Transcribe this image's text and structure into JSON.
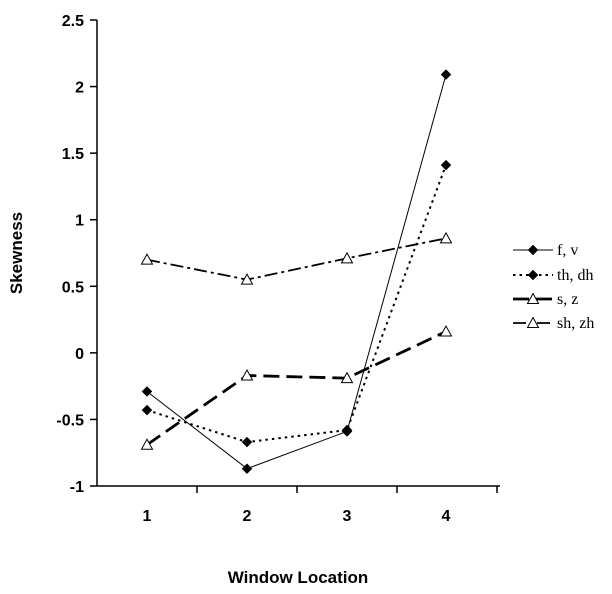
{
  "chart_data": {
    "type": "line",
    "xlabel": "Window Location",
    "ylabel": "Skewness",
    "categories": [
      "1",
      "2",
      "3",
      "4"
    ],
    "ylim": [
      -1,
      2.5
    ],
    "yticks": [
      "-1",
      "-0.5",
      "0",
      "0.5",
      "1",
      "1.5",
      "2",
      "2.5"
    ],
    "grid": false,
    "legend_position": "right",
    "series": [
      {
        "name": "f, v",
        "values": [
          -0.29,
          -0.87,
          -0.59,
          2.09
        ],
        "marker": "diamond-filled",
        "line": "solid-thin",
        "color": "#000000"
      },
      {
        "name": "th, dh",
        "values": [
          -0.43,
          -0.67,
          -0.58,
          1.41
        ],
        "marker": "diamond-filled",
        "line": "dotted",
        "color": "#000000"
      },
      {
        "name": "s, z",
        "values": [
          -0.69,
          -0.17,
          -0.19,
          0.16
        ],
        "marker": "triangle-open",
        "line": "long-dash-thick",
        "color": "#000000"
      },
      {
        "name": "sh, zh",
        "values": [
          0.7,
          0.55,
          0.71,
          0.86
        ],
        "marker": "triangle-open",
        "line": "dash-dot",
        "color": "#000000"
      }
    ]
  }
}
